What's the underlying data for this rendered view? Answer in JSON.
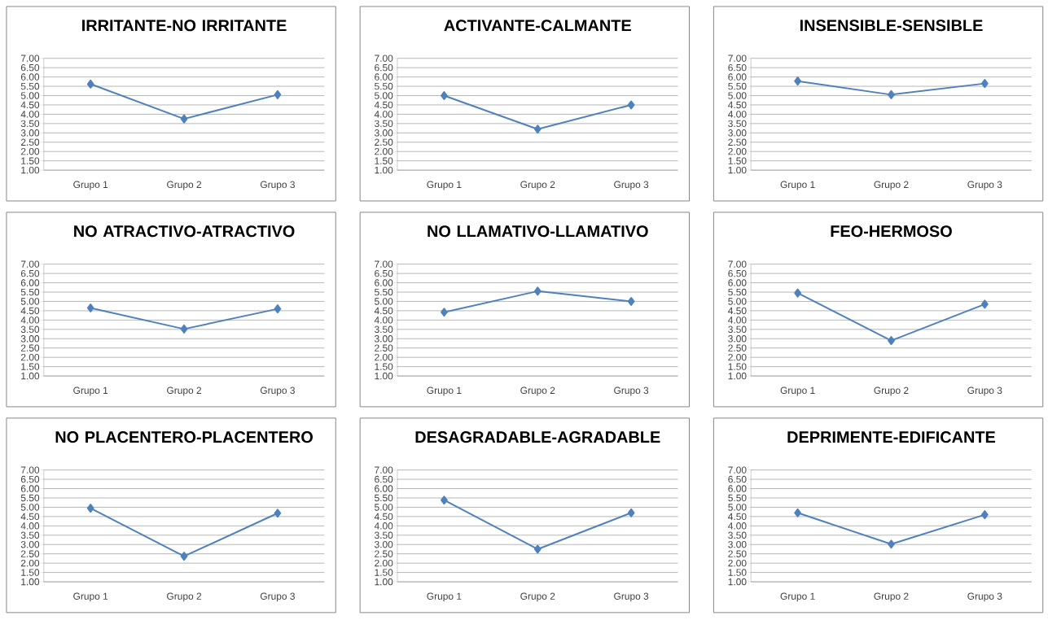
{
  "chart_data": [
    {
      "type": "line",
      "title": "IRRITANTE-NO IRRITANTE",
      "categories": [
        "Grupo 1",
        "Grupo 2",
        "Grupo 3"
      ],
      "series": [
        {
          "color": "#4f81bd",
          "values": [
            5.62,
            3.75,
            5.05
          ]
        }
      ],
      "ylim": [
        1,
        7
      ],
      "yticks": [
        {
          "value": 1,
          "label": "1.00"
        },
        {
          "value": 1.5,
          "label": "1.50"
        },
        {
          "value": 2,
          "label": "2.00"
        },
        {
          "value": 2.5,
          "label": "2.50"
        },
        {
          "value": 3,
          "label": "3.00"
        },
        {
          "value": 3.5,
          "label": "3.50"
        },
        {
          "value": 4,
          "label": "4.00"
        },
        {
          "value": 4.5,
          "label": "4.50"
        },
        {
          "value": 5,
          "label": "5.00"
        },
        {
          "value": 5.5,
          "label": "5.50"
        },
        {
          "value": 6,
          "label": "6.00"
        },
        {
          "value": 6.5,
          "label": "6.50"
        },
        {
          "value": 7,
          "label": "7.00"
        }
      ],
      "grid": "y",
      "marker": "diamond",
      "line_style": "solid"
    },
    {
      "type": "line",
      "title": "ACTIVANTE-CALMANTE",
      "categories": [
        "Grupo 1",
        "Grupo 2",
        "Grupo 3"
      ],
      "series": [
        {
          "color": "#4f81bd",
          "values": [
            5.0,
            3.2,
            4.5
          ]
        }
      ],
      "ylim": [
        1,
        7
      ],
      "yticks": [
        {
          "value": 1,
          "label": "1.00"
        },
        {
          "value": 1.5,
          "label": "1.50"
        },
        {
          "value": 2,
          "label": "2.00"
        },
        {
          "value": 2.5,
          "label": "2.50"
        },
        {
          "value": 3,
          "label": "3.00"
        },
        {
          "value": 3.5,
          "label": "3.50"
        },
        {
          "value": 4,
          "label": "4.00"
        },
        {
          "value": 4.5,
          "label": "4.50"
        },
        {
          "value": 5,
          "label": "5.00"
        },
        {
          "value": 5.5,
          "label": "5.50"
        },
        {
          "value": 6,
          "label": "6.00"
        },
        {
          "value": 6.5,
          "label": "6.50"
        },
        {
          "value": 7,
          "label": "7.00"
        }
      ],
      "grid": "y",
      "marker": "diamond",
      "line_style": "solid"
    },
    {
      "type": "line",
      "title": "INSENSIBLE-SENSIBLE",
      "categories": [
        "Grupo 1",
        "Grupo 2",
        "Grupo 3"
      ],
      "series": [
        {
          "color": "#4f81bd",
          "values": [
            5.78,
            5.05,
            5.65
          ]
        }
      ],
      "ylim": [
        1,
        7
      ],
      "yticks": [
        {
          "value": 1,
          "label": "1.00"
        },
        {
          "value": 1.5,
          "label": "1.50"
        },
        {
          "value": 2,
          "label": "2.00"
        },
        {
          "value": 2.5,
          "label": "2.50"
        },
        {
          "value": 3,
          "label": "3.00"
        },
        {
          "value": 3.5,
          "label": "3.50"
        },
        {
          "value": 4,
          "label": "4.00"
        },
        {
          "value": 4.5,
          "label": "4.50"
        },
        {
          "value": 5,
          "label": "5.00"
        },
        {
          "value": 5.5,
          "label": "5.50"
        },
        {
          "value": 6,
          "label": "6.00"
        },
        {
          "value": 6.5,
          "label": "6.50"
        },
        {
          "value": 7,
          "label": "7.00"
        }
      ],
      "grid": "y",
      "marker": "diamond",
      "line_style": "solid"
    },
    {
      "type": "line",
      "title": "NO ATRACTIVO-ATRACTIVO",
      "categories": [
        "Grupo 1",
        "Grupo 2",
        "Grupo 3"
      ],
      "series": [
        {
          "color": "#4f81bd",
          "values": [
            4.65,
            3.52,
            4.6
          ]
        }
      ],
      "ylim": [
        1,
        7
      ],
      "yticks": [
        {
          "value": 1,
          "label": "1.00"
        },
        {
          "value": 1.5,
          "label": "1.50"
        },
        {
          "value": 2,
          "label": "2.00"
        },
        {
          "value": 2.5,
          "label": "2.50"
        },
        {
          "value": 3,
          "label": "3.00"
        },
        {
          "value": 3.5,
          "label": "3.50"
        },
        {
          "value": 4,
          "label": "4.00"
        },
        {
          "value": 4.5,
          "label": "4.50"
        },
        {
          "value": 5,
          "label": "5.00"
        },
        {
          "value": 5.5,
          "label": "5.50"
        },
        {
          "value": 6,
          "label": "6.00"
        },
        {
          "value": 6.5,
          "label": "6.50"
        },
        {
          "value": 7,
          "label": "7.00"
        }
      ],
      "grid": "y",
      "marker": "diamond",
      "line_style": "solid"
    },
    {
      "type": "line",
      "title": "NO LLAMATIVO-LLAMATIVO",
      "categories": [
        "Grupo 1",
        "Grupo 2",
        "Grupo 3"
      ],
      "series": [
        {
          "color": "#4f81bd",
          "values": [
            4.42,
            5.55,
            5.0
          ]
        }
      ],
      "ylim": [
        1,
        7
      ],
      "yticks": [
        {
          "value": 1,
          "label": "1.00"
        },
        {
          "value": 1.5,
          "label": "1.50"
        },
        {
          "value": 2,
          "label": "2.00"
        },
        {
          "value": 2.5,
          "label": "2.50"
        },
        {
          "value": 3,
          "label": "3.00"
        },
        {
          "value": 3.5,
          "label": "3.50"
        },
        {
          "value": 4,
          "label": "4.00"
        },
        {
          "value": 4.5,
          "label": "4.50"
        },
        {
          "value": 5,
          "label": "5.00"
        },
        {
          "value": 5.5,
          "label": "5.50"
        },
        {
          "value": 6,
          "label": "6.00"
        },
        {
          "value": 6.5,
          "label": "6.50"
        },
        {
          "value": 7,
          "label": "7.00"
        }
      ],
      "grid": "y",
      "marker": "diamond",
      "line_style": "solid"
    },
    {
      "type": "line",
      "title": "FEO-HERMOSO",
      "categories": [
        "Grupo 1",
        "Grupo 2",
        "Grupo 3"
      ],
      "series": [
        {
          "color": "#4f81bd",
          "values": [
            5.45,
            2.9,
            4.85
          ]
        }
      ],
      "ylim": [
        1,
        7
      ],
      "yticks": [
        {
          "value": 1,
          "label": "1.00"
        },
        {
          "value": 1.5,
          "label": "1.50"
        },
        {
          "value": 2,
          "label": "2.00"
        },
        {
          "value": 2.5,
          "label": "2.50"
        },
        {
          "value": 3,
          "label": "3.00"
        },
        {
          "value": 3.5,
          "label": "3.50"
        },
        {
          "value": 4,
          "label": "4.00"
        },
        {
          "value": 4.5,
          "label": "4.50"
        },
        {
          "value": 5,
          "label": "5.00"
        },
        {
          "value": 5.5,
          "label": "5.50"
        },
        {
          "value": 6,
          "label": "6.00"
        },
        {
          "value": 6.5,
          "label": "6.50"
        },
        {
          "value": 7,
          "label": "7.00"
        }
      ],
      "grid": "y",
      "marker": "diamond",
      "line_style": "solid"
    },
    {
      "type": "line",
      "title": "NO PLACENTERO-PLACENTERO",
      "categories": [
        "Grupo 1",
        "Grupo 2",
        "Grupo 3"
      ],
      "series": [
        {
          "color": "#4f81bd",
          "values": [
            4.95,
            2.37,
            4.68
          ]
        }
      ],
      "ylim": [
        1,
        7
      ],
      "yticks": [
        {
          "value": 1,
          "label": "1.00"
        },
        {
          "value": 1.5,
          "label": "1.50"
        },
        {
          "value": 2,
          "label": "2.00"
        },
        {
          "value": 2.5,
          "label": "2.50"
        },
        {
          "value": 3,
          "label": "3.00"
        },
        {
          "value": 3.5,
          "label": "3.50"
        },
        {
          "value": 4,
          "label": "4.00"
        },
        {
          "value": 4.5,
          "label": "4.50"
        },
        {
          "value": 5,
          "label": "5.00"
        },
        {
          "value": 5.5,
          "label": "5.50"
        },
        {
          "value": 6,
          "label": "6.00"
        },
        {
          "value": 6.5,
          "label": "6.50"
        },
        {
          "value": 7,
          "label": "7.00"
        }
      ],
      "grid": "y",
      "marker": "diamond",
      "line_style": "solid"
    },
    {
      "type": "line",
      "title": "DESAGRADABLE-AGRADABLE",
      "categories": [
        "Grupo 1",
        "Grupo 2",
        "Grupo 3"
      ],
      "series": [
        {
          "color": "#4f81bd",
          "values": [
            5.38,
            2.75,
            4.7
          ]
        }
      ],
      "ylim": [
        1,
        7
      ],
      "yticks": [
        {
          "value": 1,
          "label": "1.00"
        },
        {
          "value": 1.5,
          "label": "1.50"
        },
        {
          "value": 2,
          "label": "2.00"
        },
        {
          "value": 2.5,
          "label": "2.50"
        },
        {
          "value": 3,
          "label": "3.00"
        },
        {
          "value": 3.5,
          "label": "3.50"
        },
        {
          "value": 4,
          "label": "4.00"
        },
        {
          "value": 4.5,
          "label": "4.50"
        },
        {
          "value": 5,
          "label": "5.00"
        },
        {
          "value": 5.5,
          "label": "5.50"
        },
        {
          "value": 6,
          "label": "6.00"
        },
        {
          "value": 6.5,
          "label": "6.50"
        },
        {
          "value": 7,
          "label": "7.00"
        }
      ],
      "grid": "y",
      "marker": "diamond",
      "line_style": "solid"
    },
    {
      "type": "line",
      "title": "DEPRIMENTE-EDIFICANTE",
      "categories": [
        "Grupo 1",
        "Grupo 2",
        "Grupo 3"
      ],
      "series": [
        {
          "color": "#4f81bd",
          "values": [
            4.7,
            3.02,
            4.6
          ]
        }
      ],
      "ylim": [
        1,
        7
      ],
      "yticks": [
        {
          "value": 1,
          "label": "1.00"
        },
        {
          "value": 1.5,
          "label": "1.50"
        },
        {
          "value": 2,
          "label": "2.00"
        },
        {
          "value": 2.5,
          "label": "2.50"
        },
        {
          "value": 3,
          "label": "3.00"
        },
        {
          "value": 3.5,
          "label": "3.50"
        },
        {
          "value": 4,
          "label": "4.00"
        },
        {
          "value": 4.5,
          "label": "4.50"
        },
        {
          "value": 5,
          "label": "5.00"
        },
        {
          "value": 5.5,
          "label": "5.50"
        },
        {
          "value": 6,
          "label": "6.00"
        },
        {
          "value": 6.5,
          "label": "6.50"
        },
        {
          "value": 7,
          "label": "7.00"
        }
      ],
      "grid": "y",
      "marker": "diamond",
      "line_style": "solid"
    }
  ]
}
